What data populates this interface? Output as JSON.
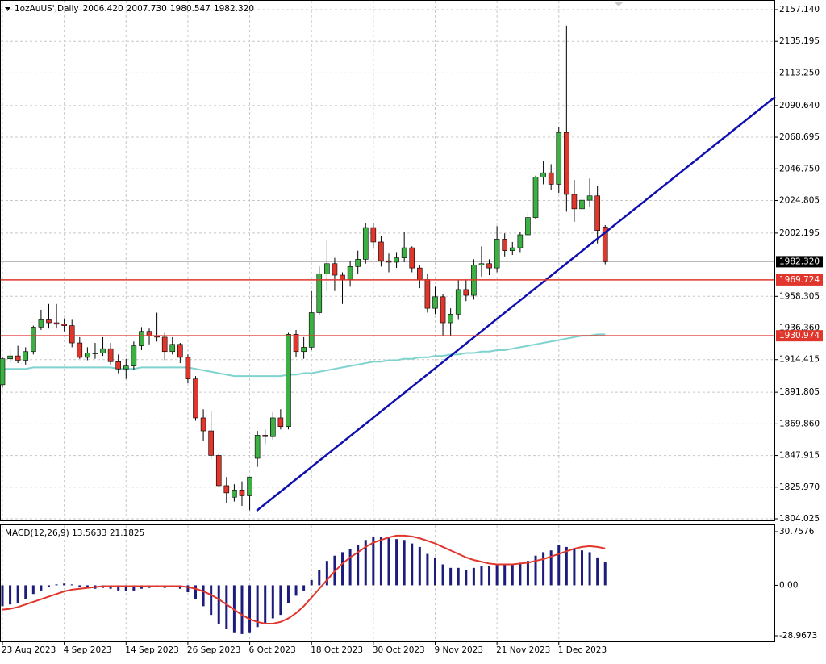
{
  "chart_data": [
    {
      "type": "candlestick",
      "title": "1ozAuUS',Daily",
      "info_values": [
        {
          "value": 2006.42,
          "label": "2006.420"
        },
        {
          "value": 2007.73,
          "label": "2007.730"
        },
        {
          "value": 1980.547,
          "label": "1980.547"
        },
        {
          "value": 1982.32,
          "label": "1982.320"
        }
      ],
      "categories": [
        "23 Aug 2023",
        null,
        null,
        null,
        null,
        null,
        null,
        null,
        "4 Sep 2023",
        null,
        null,
        null,
        null,
        null,
        null,
        null,
        "14 Sep 2023",
        null,
        null,
        null,
        null,
        null,
        null,
        null,
        "26 Sep 2023",
        null,
        null,
        null,
        null,
        null,
        null,
        null,
        "6 Oct 2023",
        null,
        null,
        null,
        null,
        null,
        null,
        null,
        "18 Oct 2023",
        null,
        null,
        null,
        null,
        null,
        null,
        null,
        "30 Oct 2023",
        null,
        null,
        null,
        null,
        null,
        null,
        null,
        "9 Nov 2023",
        null,
        null,
        null,
        null,
        null,
        null,
        null,
        "21 Nov 2023",
        null,
        null,
        null,
        null,
        null,
        null,
        null,
        "1 Dec 2023",
        null,
        null,
        null,
        null,
        null,
        null
      ],
      "open": [
        1897,
        1915,
        1917,
        1914,
        1920,
        1937,
        1942,
        1940,
        1939,
        1938,
        1926,
        1916,
        1919,
        1919,
        1922,
        1913,
        1908,
        1910,
        1924,
        1934,
        1931,
        1930,
        1920,
        1925,
        1916,
        1901,
        1874,
        1865,
        1848,
        1827,
        1819,
        1824,
        1820,
        1846,
        1862,
        1861,
        1874,
        1868,
        1932,
        1920,
        1923,
        1947,
        1974,
        1981,
        1973,
        1970,
        1979,
        1984,
        2006,
        1996,
        1983,
        1982,
        1985,
        1992,
        1978,
        1970,
        1950,
        1958,
        1940,
        1946,
        1963,
        1959,
        1980,
        1981,
        1978,
        1998,
        1990,
        1992,
        2001,
        2013,
        2041,
        2044,
        2036,
        2072,
        2029,
        2019,
        2025,
        2028,
        2006.42
      ],
      "high": [
        1916,
        1922,
        1924,
        1923,
        1938,
        1949,
        1953,
        1953,
        1943,
        1942,
        1930,
        1923,
        1926,
        1930,
        1926,
        1918,
        1915,
        1927,
        1937,
        1936,
        1947,
        1933,
        1930,
        1926,
        1918,
        1903,
        1880,
        1879,
        1849,
        1833,
        1828,
        1830,
        1833,
        1865,
        1866,
        1878,
        1880,
        1933,
        1935,
        1930,
        1962,
        1979,
        1997,
        1985,
        1975,
        1983,
        1990,
        2009,
        2009,
        2000,
        1988,
        1989,
        2003,
        1993,
        1980,
        1974,
        1965,
        1960,
        1950,
        1970,
        1970,
        1984,
        1993,
        1984,
        2007,
        2002,
        1996,
        2003,
        2017,
        2042,
        2052,
        2050,
        2076,
        2146,
        2039,
        2035,
        2040,
        2035,
        2007.73
      ],
      "low": [
        1895,
        1912,
        1912,
        1911,
        1918,
        1935,
        1936,
        1936,
        1934,
        1923,
        1915,
        1914,
        1915,
        1917,
        1911,
        1905,
        1901,
        1907,
        1921,
        1925,
        1927,
        1914,
        1918,
        1912,
        1898,
        1872,
        1858,
        1846,
        1826,
        1815,
        1816,
        1813,
        1810,
        1840,
        1856,
        1859,
        1866,
        1866,
        1916,
        1915,
        1921,
        1945,
        1962,
        1962,
        1953,
        1965,
        1974,
        1981,
        1992,
        1979,
        1975,
        1978,
        1982,
        1975,
        1964,
        1947,
        1946,
        1931,
        1931,
        1942,
        1955,
        1956,
        1972,
        1973,
        1975,
        1986,
        1987,
        1989,
        2000,
        2012,
        2036,
        2032,
        2030,
        2017,
        2010,
        2017,
        2020,
        1995,
        1980.547
      ],
      "close": [
        1915,
        1917,
        1914,
        1920,
        1937,
        1942,
        1940,
        1939,
        1938,
        1926,
        1916,
        1919,
        1919,
        1922,
        1913,
        1908,
        1910,
        1924,
        1934,
        1931,
        1930,
        1920,
        1925,
        1916,
        1901,
        1874,
        1865,
        1848,
        1827,
        1822,
        1824,
        1820,
        1833,
        1862,
        1861,
        1874,
        1868,
        1932,
        1920,
        1923,
        1947,
        1974,
        1981,
        1973,
        1970,
        1979,
        1984,
        2006,
        1996,
        1983,
        1982,
        1985,
        1992,
        1978,
        1970,
        1950,
        1958,
        1940,
        1946,
        1963,
        1959,
        1980,
        1981,
        1978,
        1998,
        1990,
        1992,
        2001,
        2013,
        2041,
        2044,
        2036,
        2072,
        2029,
        2019,
        2025,
        2028,
        2004,
        1982.32
      ],
      "up_color": "#3cb043",
      "down_color": "#e0362c",
      "ma": {
        "color": "#7fd3cf",
        "values": [
          1908,
          1908,
          1908,
          1908,
          1909,
          1909,
          1909,
          1909,
          1909,
          1909,
          1909,
          1909,
          1909,
          1909,
          1909,
          1908,
          1908,
          1908,
          1909,
          1909,
          1909,
          1909,
          1909,
          1909,
          1909,
          1908,
          1907,
          1906,
          1905,
          1904,
          1903,
          1903,
          1903,
          1903,
          1903,
          1903,
          1903,
          1904,
          1904,
          1905,
          1905,
          1906,
          1907,
          1908,
          1909,
          1910,
          1911,
          1912,
          1913,
          1913,
          1914,
          1914,
          1915,
          1915,
          1916,
          1916,
          1917,
          1917,
          1918,
          1918,
          1919,
          1919,
          1920,
          1920,
          1921,
          1921,
          1922,
          1923,
          1924,
          1925,
          1926,
          1927,
          1928,
          1929,
          1930,
          1931,
          1931,
          1932,
          1932
        ]
      },
      "trendline": {
        "color": "#1010b0",
        "x": [
          32.9,
          100
        ],
        "y": [
          1809.6,
          2096.7
        ]
      },
      "hlines": [
        {
          "value": 1969.724,
          "label": "1969.724",
          "color": "#e0362c"
        },
        {
          "value": 1930.974,
          "label": "1930.974",
          "color": "#e0362c"
        }
      ],
      "price_line": {
        "value": 1982.32,
        "label": "1982.320",
        "color": "#b0b0b0"
      },
      "ylim": [
        1804.025,
        2157.14
      ],
      "yticks": [
        {
          "value": 2157.14,
          "label": "2157.140"
        },
        {
          "value": 2135.195,
          "label": "2135.195"
        },
        {
          "value": 2113.25,
          "label": "2113.250"
        },
        {
          "value": 2090.64,
          "label": "2090.640"
        },
        {
          "value": 2068.695,
          "label": "2068.695"
        },
        {
          "value": 2046.75,
          "label": "2046.750"
        },
        {
          "value": 2024.805,
          "label": "2024.805"
        },
        {
          "value": 2002.195,
          "label": "2002.195"
        },
        {
          "value": 1958.305,
          "label": "1958.305"
        },
        {
          "value": 1936.36,
          "label": "1936.360"
        },
        {
          "value": 1914.415,
          "label": "1914.415"
        },
        {
          "value": 1891.805,
          "label": "1891.805"
        },
        {
          "value": 1869.86,
          "label": "1869.860"
        },
        {
          "value": 1847.915,
          "label": "1847.915"
        },
        {
          "value": 1825.97,
          "label": "1825.970"
        },
        {
          "value": 1804.025,
          "label": "1804.025"
        }
      ],
      "grid": true
    },
    {
      "type": "macd",
      "title": "MACD(12,26,9) 13.5633 21.1825",
      "histogram": {
        "color": "#1c1c7c",
        "values": [
          -12,
          -11,
          -10,
          -8,
          -5,
          -3,
          -1,
          0.5,
          1,
          0.5,
          -1,
          -1.5,
          -2,
          -1.5,
          -2,
          -3,
          -3.5,
          -3,
          -2,
          -1.5,
          -1,
          -1.5,
          -1,
          -2,
          -4,
          -8,
          -12,
          -17,
          -22,
          -25,
          -27,
          -28,
          -27,
          -24,
          -22,
          -19,
          -17,
          -10,
          -6,
          -3,
          3,
          9,
          14,
          17,
          19,
          21,
          23,
          26,
          28,
          27.5,
          27,
          26.5,
          26,
          24,
          22,
          18,
          16,
          12,
          10,
          10,
          9,
          10,
          11,
          11,
          12,
          12,
          12,
          13,
          14,
          17,
          19,
          20,
          23,
          22,
          21,
          20,
          19,
          16,
          13.5633
        ]
      },
      "signal": {
        "color": "#e0362c",
        "values": [
          -14,
          -13.5,
          -12.5,
          -11,
          -9.5,
          -8,
          -6.5,
          -5,
          -3.5,
          -2.5,
          -2,
          -1.5,
          -1,
          -0.5,
          -0.5,
          -0.5,
          -0.5,
          -0.5,
          -0.5,
          -0.5,
          -0.5,
          -0.5,
          -0.5,
          -0.5,
          -1,
          -2,
          -3.5,
          -5.5,
          -8,
          -11,
          -14,
          -17,
          -19.5,
          -21,
          -22,
          -22,
          -21,
          -19,
          -16,
          -12,
          -7,
          -2,
          3,
          8,
          12.5,
          16,
          19,
          22,
          24.5,
          26,
          27.5,
          28.5,
          28.5,
          28,
          27,
          25.5,
          24,
          22,
          20,
          18,
          16,
          14.5,
          13.5,
          12.5,
          12,
          12,
          12,
          12.5,
          13,
          14,
          15,
          16.5,
          18,
          19.5,
          21,
          22,
          22.5,
          22,
          21.1825
        ]
      },
      "ylim": [
        -28.9673,
        30.7576
      ],
      "yticks": [
        {
          "value": 30.7576,
          "label": "30.7576"
        },
        {
          "value": 0,
          "label": "0.00"
        },
        {
          "value": -28.9673,
          "label": "-28.9673"
        }
      ]
    }
  ]
}
